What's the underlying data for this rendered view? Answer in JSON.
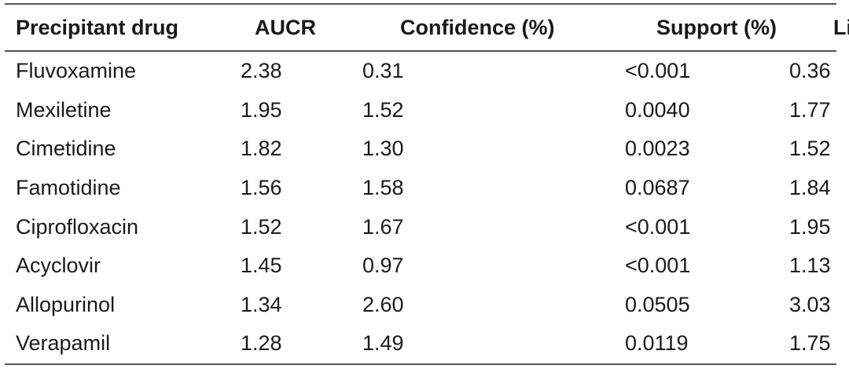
{
  "table": {
    "headers": [
      "Precipitant drug",
      "AUCR",
      "Confidence (%)",
      "Support (%)",
      "Lift"
    ],
    "rows": [
      [
        "Fluvoxamine",
        "2.38",
        "0.31",
        "<0.001",
        "0.36"
      ],
      [
        "Mexiletine",
        "1.95",
        "1.52",
        "0.0040",
        "1.77"
      ],
      [
        "Cimetidine",
        "1.82",
        "1.30",
        "0.0023",
        "1.52"
      ],
      [
        "Famotidine",
        "1.56",
        "1.58",
        "0.0687",
        "1.84"
      ],
      [
        "Ciprofloxacin",
        "1.52",
        "1.67",
        "<0.001",
        "1.95"
      ],
      [
        "Acyclovir",
        "1.45",
        "0.97",
        "<0.001",
        "1.13"
      ],
      [
        "Allopurinol",
        "1.34",
        "2.60",
        "0.0505",
        "3.03"
      ],
      [
        "Verapamil",
        "1.28",
        "1.49",
        "0.0119",
        "1.75"
      ]
    ]
  }
}
